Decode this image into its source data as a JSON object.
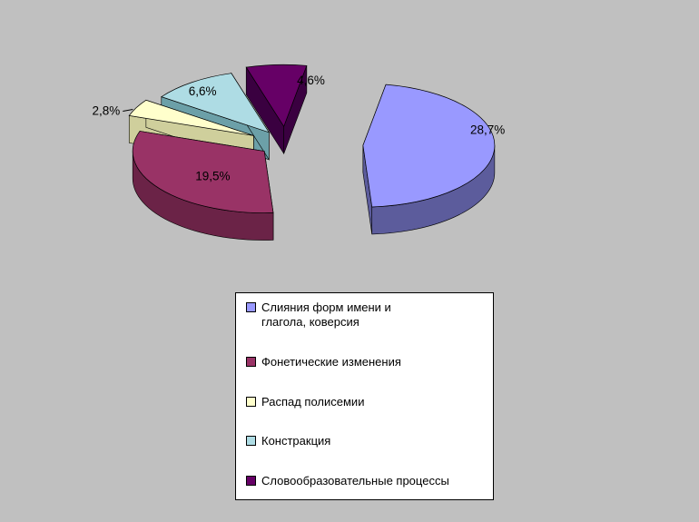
{
  "page": {
    "background": "#C0C0C0"
  },
  "chart_data": {
    "type": "pie",
    "style": "3d-exploded",
    "title": "",
    "legend_position": "bottom-center",
    "legend_background": "#FFFFFF",
    "legend_border_color": "#000000",
    "labels": [
      "Слияния форм имени и\nглагола, коверсия",
      "Фонетические изменения",
      "Распад полисемии",
      "Констракция",
      "Словообразовательные процессы"
    ],
    "values": [
      28.7,
      19.5,
      2.8,
      6.6,
      4.6
    ],
    "value_labels": [
      "28,7%",
      "19,5%",
      "2,8%",
      "6,6%",
      "4,6%"
    ],
    "colors": [
      "#9999FF",
      "#993366",
      "#FFFFCC",
      "#AEDCE4",
      "#660066"
    ],
    "side_colors": [
      "#5C5C9C",
      "#6B2347",
      "#CFCF9C",
      "#6CA0A8",
      "#3A0040"
    ]
  }
}
